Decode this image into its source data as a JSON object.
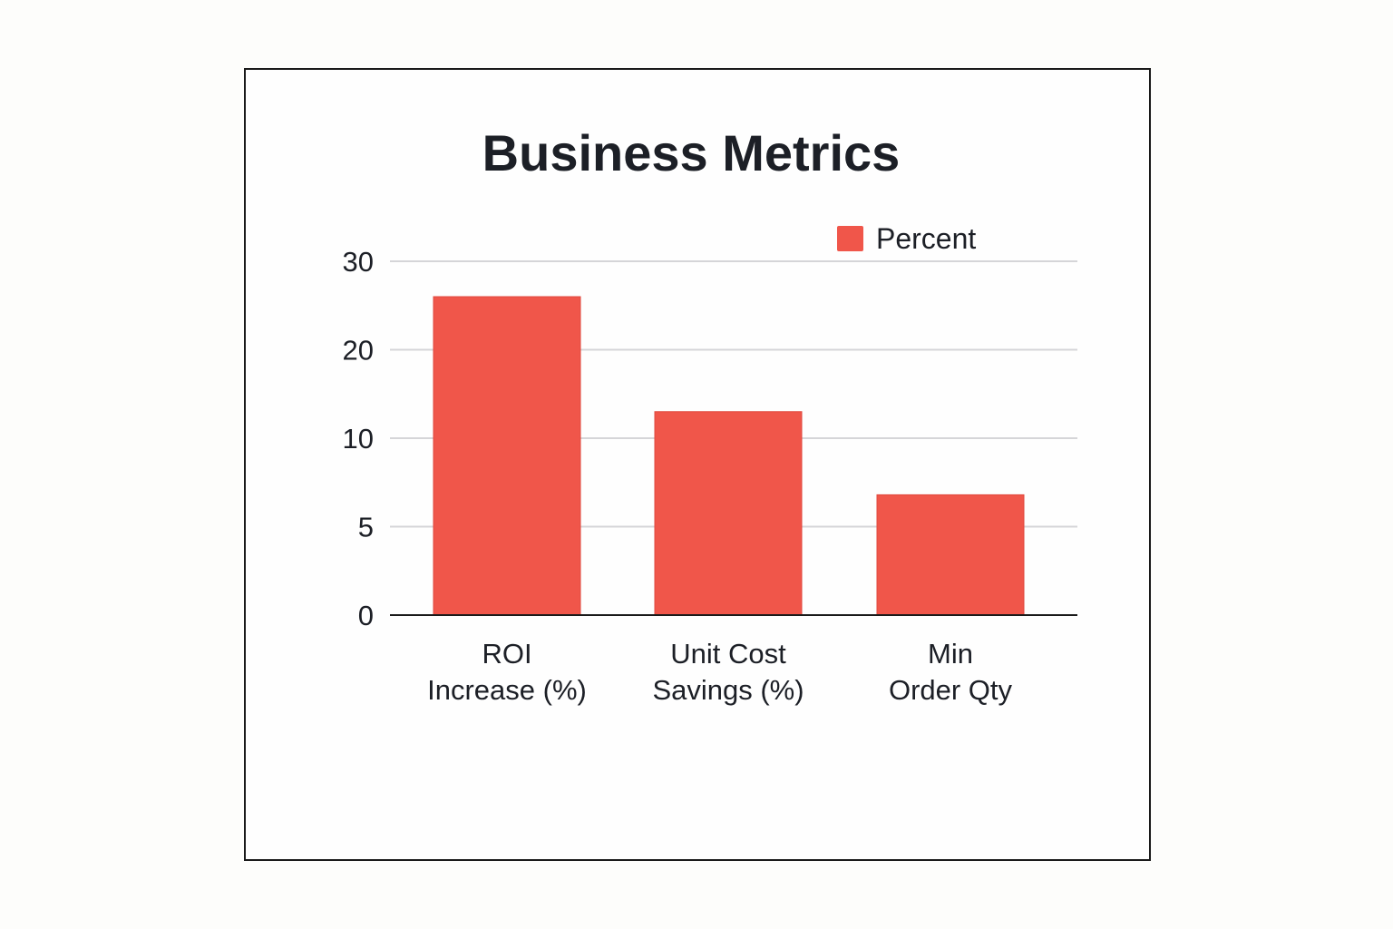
{
  "chart_data": {
    "type": "bar",
    "title": "Business Metrics",
    "categories": [
      [
        "ROI",
        "Increase (%)"
      ],
      [
        "Unit Cost",
        "Savings (%)"
      ],
      [
        "Min",
        "Order Qty"
      ]
    ],
    "series": [
      {
        "name": "Percent",
        "values": [
          26,
          13,
          6.8
        ],
        "color": "#f0564a"
      }
    ],
    "y_ticks": [
      0,
      5,
      10,
      20,
      30
    ],
    "ylim": [
      0,
      30
    ],
    "xlabel": "",
    "ylabel": "",
    "grid": true,
    "legend_position": "top-right"
  }
}
